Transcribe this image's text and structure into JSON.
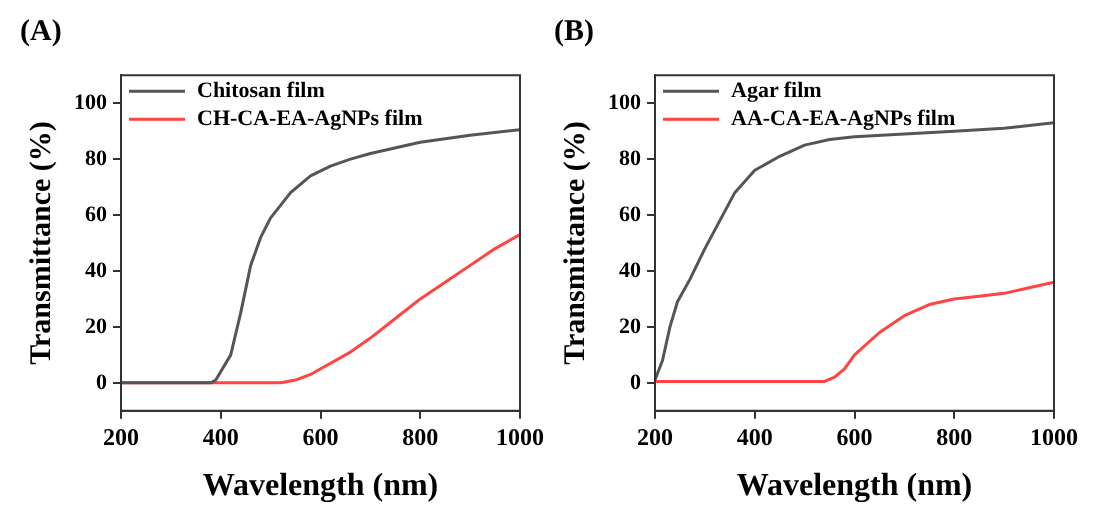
{
  "chart_data": [
    {
      "type": "line",
      "title": "(A)",
      "xlabel": "Wavelength (nm)",
      "ylabel": "Transmittance (%)",
      "xlim": [
        200,
        1000
      ],
      "xticks": [
        200,
        400,
        600,
        800,
        1000
      ],
      "ylim": [
        -10,
        110
      ],
      "yticks": [
        0,
        20,
        40,
        60,
        80,
        100
      ],
      "grid": false,
      "legend": "top left",
      "marker": "none",
      "line_style": "solid",
      "series": [
        {
          "name": "Chitosan film",
          "color": "#555555",
          "x": [
            200,
            300,
            380,
            390,
            420,
            440,
            460,
            480,
            500,
            540,
            580,
            620,
            660,
            700,
            800,
            900,
            1000
          ],
          "values": [
            0,
            0,
            0,
            1,
            10,
            25,
            42,
            52,
            59,
            68,
            74,
            77.5,
            80,
            82,
            86,
            88.5,
            90.5
          ]
        },
        {
          "name": "CH-CA-EA-AgNPs film",
          "color": "#ff4444",
          "x": [
            200,
            300,
            400,
            520,
            550,
            580,
            620,
            660,
            700,
            750,
            800,
            850,
            900,
            950,
            1000
          ],
          "values": [
            0,
            0,
            0,
            0,
            1,
            3,
            7,
            11,
            16,
            23,
            30,
            36,
            42,
            48,
            53
          ]
        }
      ]
    },
    {
      "type": "line",
      "title": "(B)",
      "xlabel": "Wavelength (nm)",
      "ylabel": "Transmittance (%)",
      "xlim": [
        200,
        1000
      ],
      "xticks": [
        200,
        400,
        600,
        800,
        1000
      ],
      "ylim": [
        -10,
        110
      ],
      "yticks": [
        0,
        20,
        40,
        60,
        80,
        100
      ],
      "grid": false,
      "legend": "top left",
      "marker": "none",
      "line_style": "solid",
      "series": [
        {
          "name": "Agar film",
          "color": "#555555",
          "x": [
            200,
            215,
            230,
            245,
            270,
            300,
            330,
            360,
            380,
            400,
            450,
            500,
            550,
            600,
            700,
            800,
            900,
            1000
          ],
          "values": [
            1,
            8,
            20,
            29,
            37,
            48,
            58,
            68,
            72,
            76,
            81,
            85,
            87,
            88,
            89,
            90,
            91,
            93
          ]
        },
        {
          "name": "AA-CA-EA-AgNPs film",
          "color": "#ff4444",
          "x": [
            200,
            300,
            400,
            540,
            560,
            580,
            600,
            650,
            700,
            750,
            800,
            850,
            900,
            950,
            1000
          ],
          "values": [
            0.5,
            0.5,
            0.5,
            0.5,
            2,
            5,
            10,
            18,
            24,
            28,
            30,
            31,
            32,
            34,
            36
          ]
        }
      ]
    }
  ]
}
